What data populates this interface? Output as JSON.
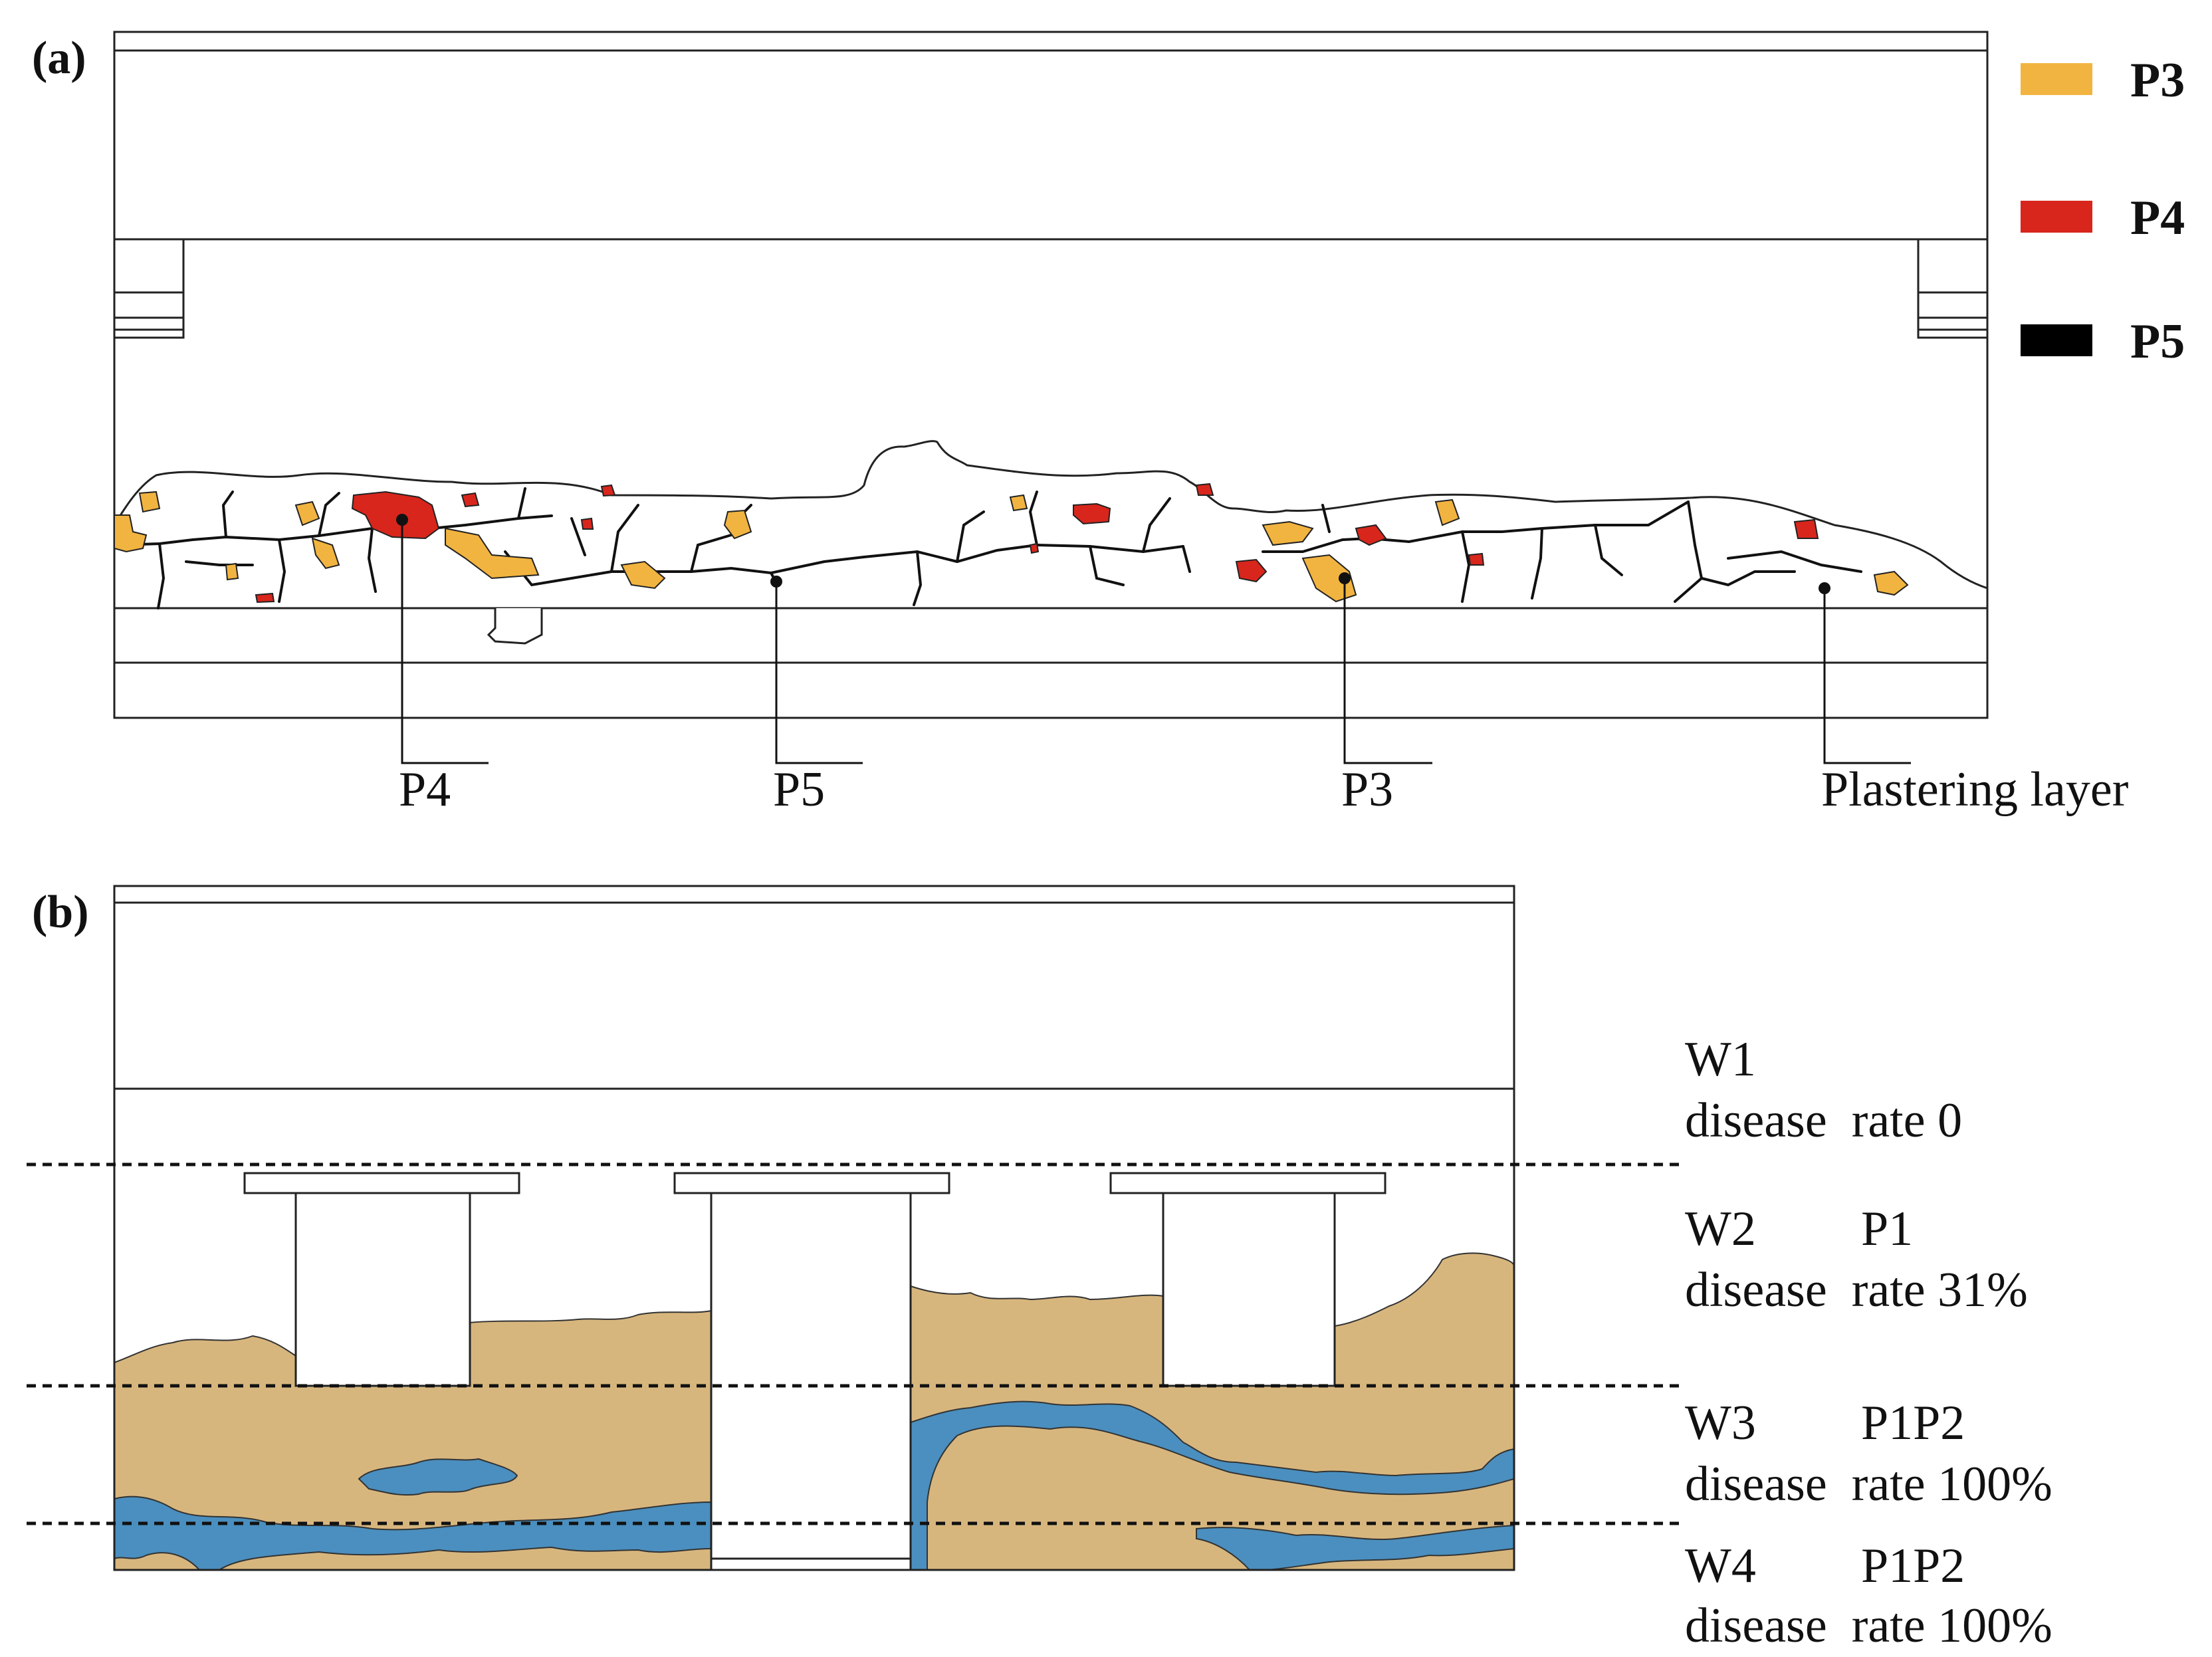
{
  "panel_a": {
    "label": "(a)",
    "legend": [
      {
        "label": "P3",
        "color": "#f2b440"
      },
      {
        "label": "P4",
        "color": "#d8261c"
      },
      {
        "label": "P5",
        "color": "#000000"
      }
    ],
    "callouts": [
      "P4",
      "P5",
      "P3",
      "Plastering layer"
    ]
  },
  "panel_b": {
    "label": "(b)",
    "zones": [
      {
        "name": "W1",
        "type": "",
        "rate_text": "disease  rate 0"
      },
      {
        "name": "W2",
        "type": "P1",
        "rate_text": "disease  rate 31%"
      },
      {
        "name": "W3",
        "type": "P1P2",
        "rate_text": "disease  rate 100%"
      },
      {
        "name": "W4",
        "type": "P1P2",
        "rate_text": "disease  rate 100%"
      }
    ],
    "colors": {
      "P1": "#d7b67e",
      "P2": "#4a8fbf"
    }
  }
}
